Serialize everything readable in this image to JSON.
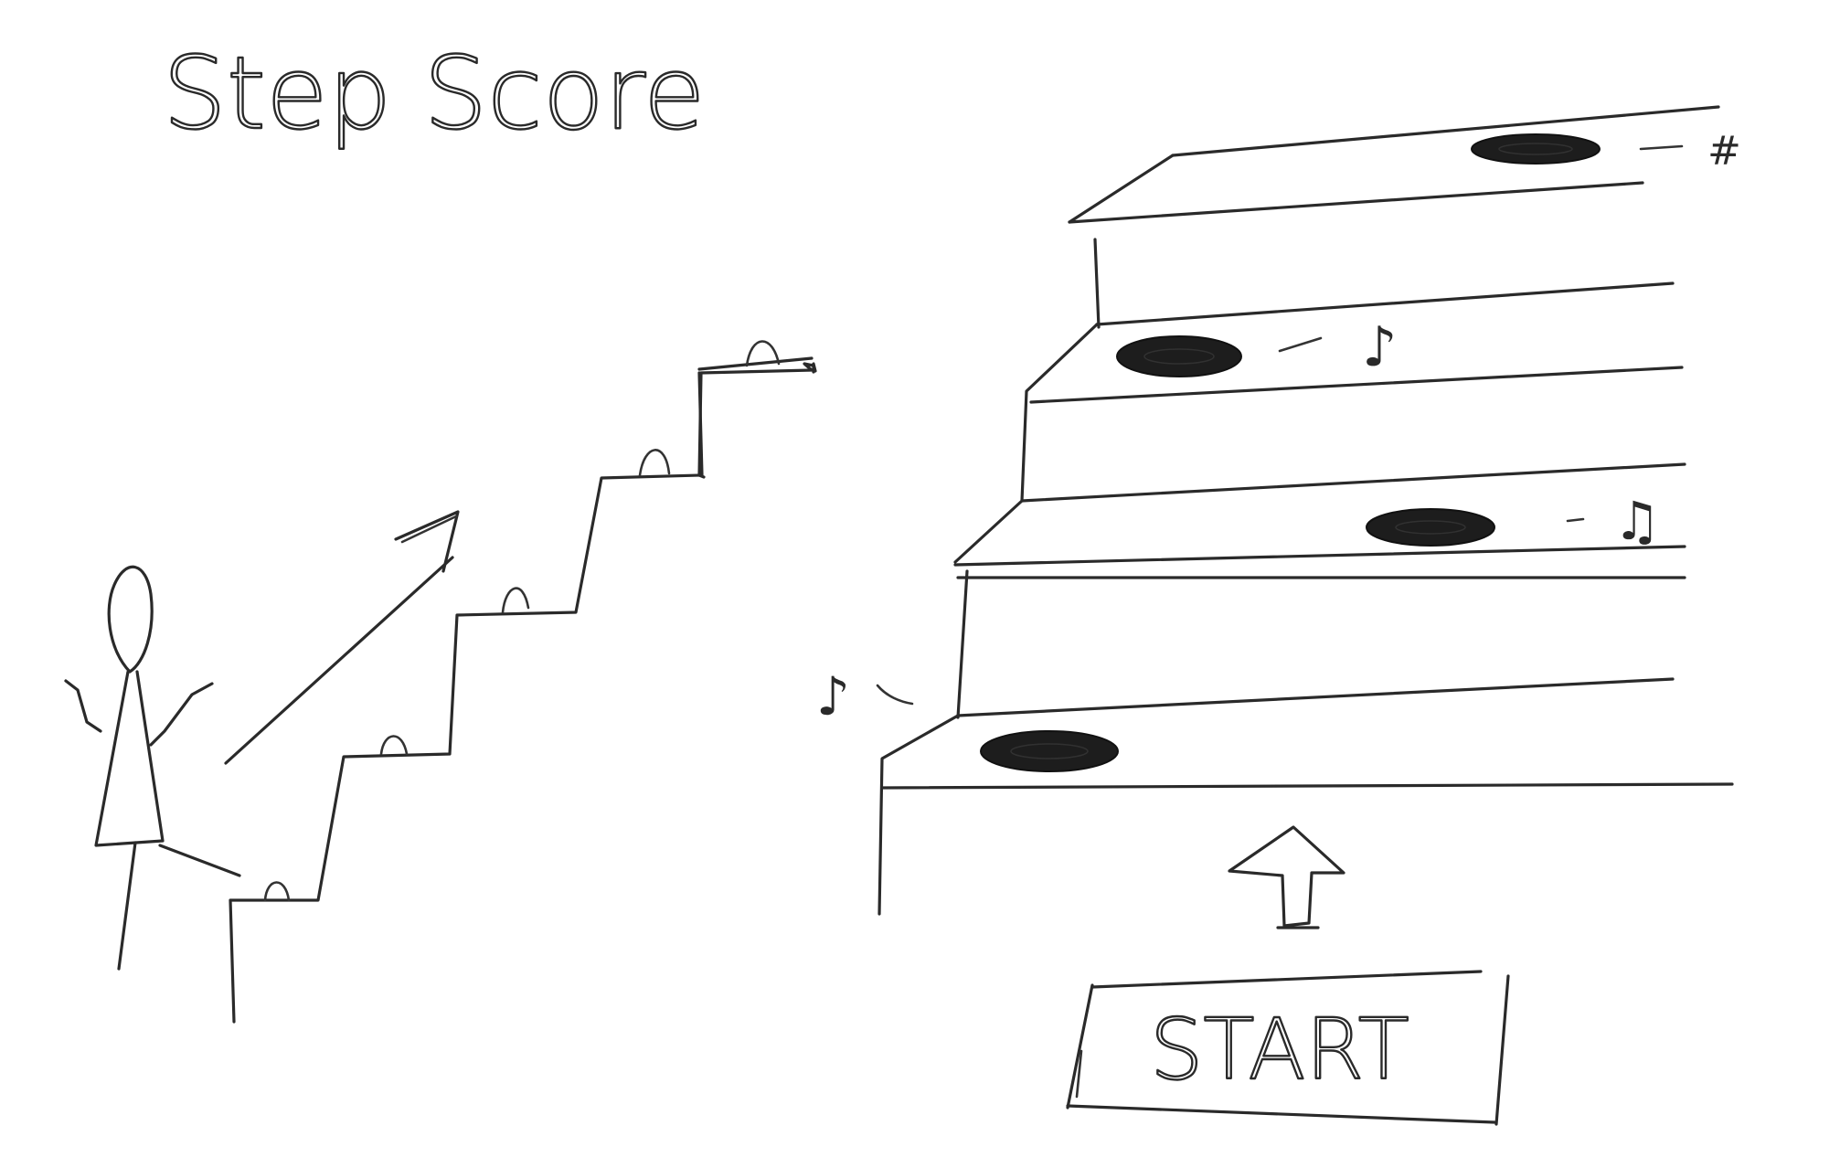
{
  "title": "Step Score",
  "start_button": {
    "label": "START"
  },
  "step_pads": [
    {
      "note": "♪"
    },
    {
      "note": "♫"
    },
    {
      "note": "♪"
    },
    {
      "note": "#"
    }
  ],
  "icons": {
    "player": "stick-figure-icon",
    "direction": "up-right-arrow-icon",
    "go": "up-arrow-icon"
  },
  "colors": {
    "ink": "#2a2a2a",
    "pad": "#1d1d1d",
    "paper": "#ffffff"
  }
}
